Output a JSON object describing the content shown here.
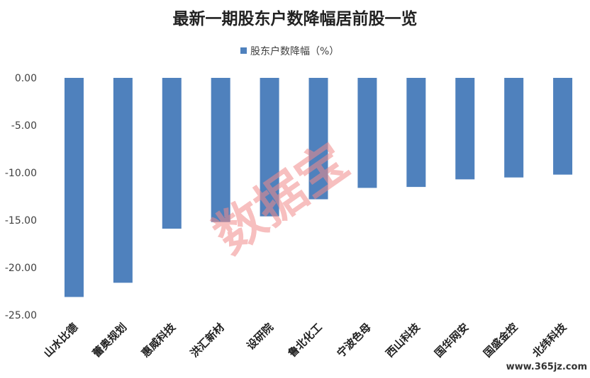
{
  "chart_data": {
    "type": "bar",
    "title": "最新一期股东户数降幅居前股一览",
    "categories": [
      "山水比德",
      "蕾奥规划",
      "惠威科技",
      "洪汇新材",
      "设研院",
      "鲁北化工",
      "宁波色母",
      "西山科技",
      "国华网安",
      "国盛金控",
      "北纬科技"
    ],
    "series": [
      {
        "name": "股东户数降幅（%）",
        "color": "#4f81bd",
        "values": [
          -23.1,
          -21.6,
          -15.9,
          -15.2,
          -14.6,
          -12.8,
          -11.6,
          -11.5,
          -10.7,
          -10.5,
          -10.2
        ]
      }
    ],
    "yticks": [
      "0.00",
      "-5.00",
      "-10.00",
      "-15.00",
      "-20.00",
      "-25.00"
    ],
    "ylim": [
      -25,
      0
    ],
    "legend_position": "top",
    "grid": false
  },
  "watermark": "数据宝",
  "site_label": "www.365jz.com"
}
